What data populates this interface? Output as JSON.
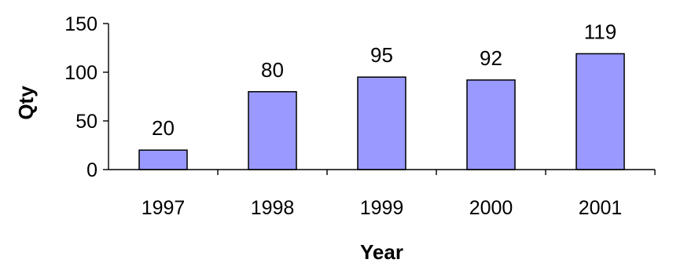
{
  "chart_data": {
    "type": "bar",
    "categories": [
      "1997",
      "1998",
      "1999",
      "2000",
      "2001"
    ],
    "values": [
      20,
      80,
      95,
      92,
      119
    ],
    "title": "",
    "xlabel": "Year",
    "ylabel": "Qty",
    "ylim": [
      0,
      150
    ],
    "yticks": [
      0,
      50,
      100,
      150
    ],
    "grid": false,
    "data_labels": true,
    "colors": {
      "bar": "#9999ff",
      "outline": "#000000"
    }
  }
}
